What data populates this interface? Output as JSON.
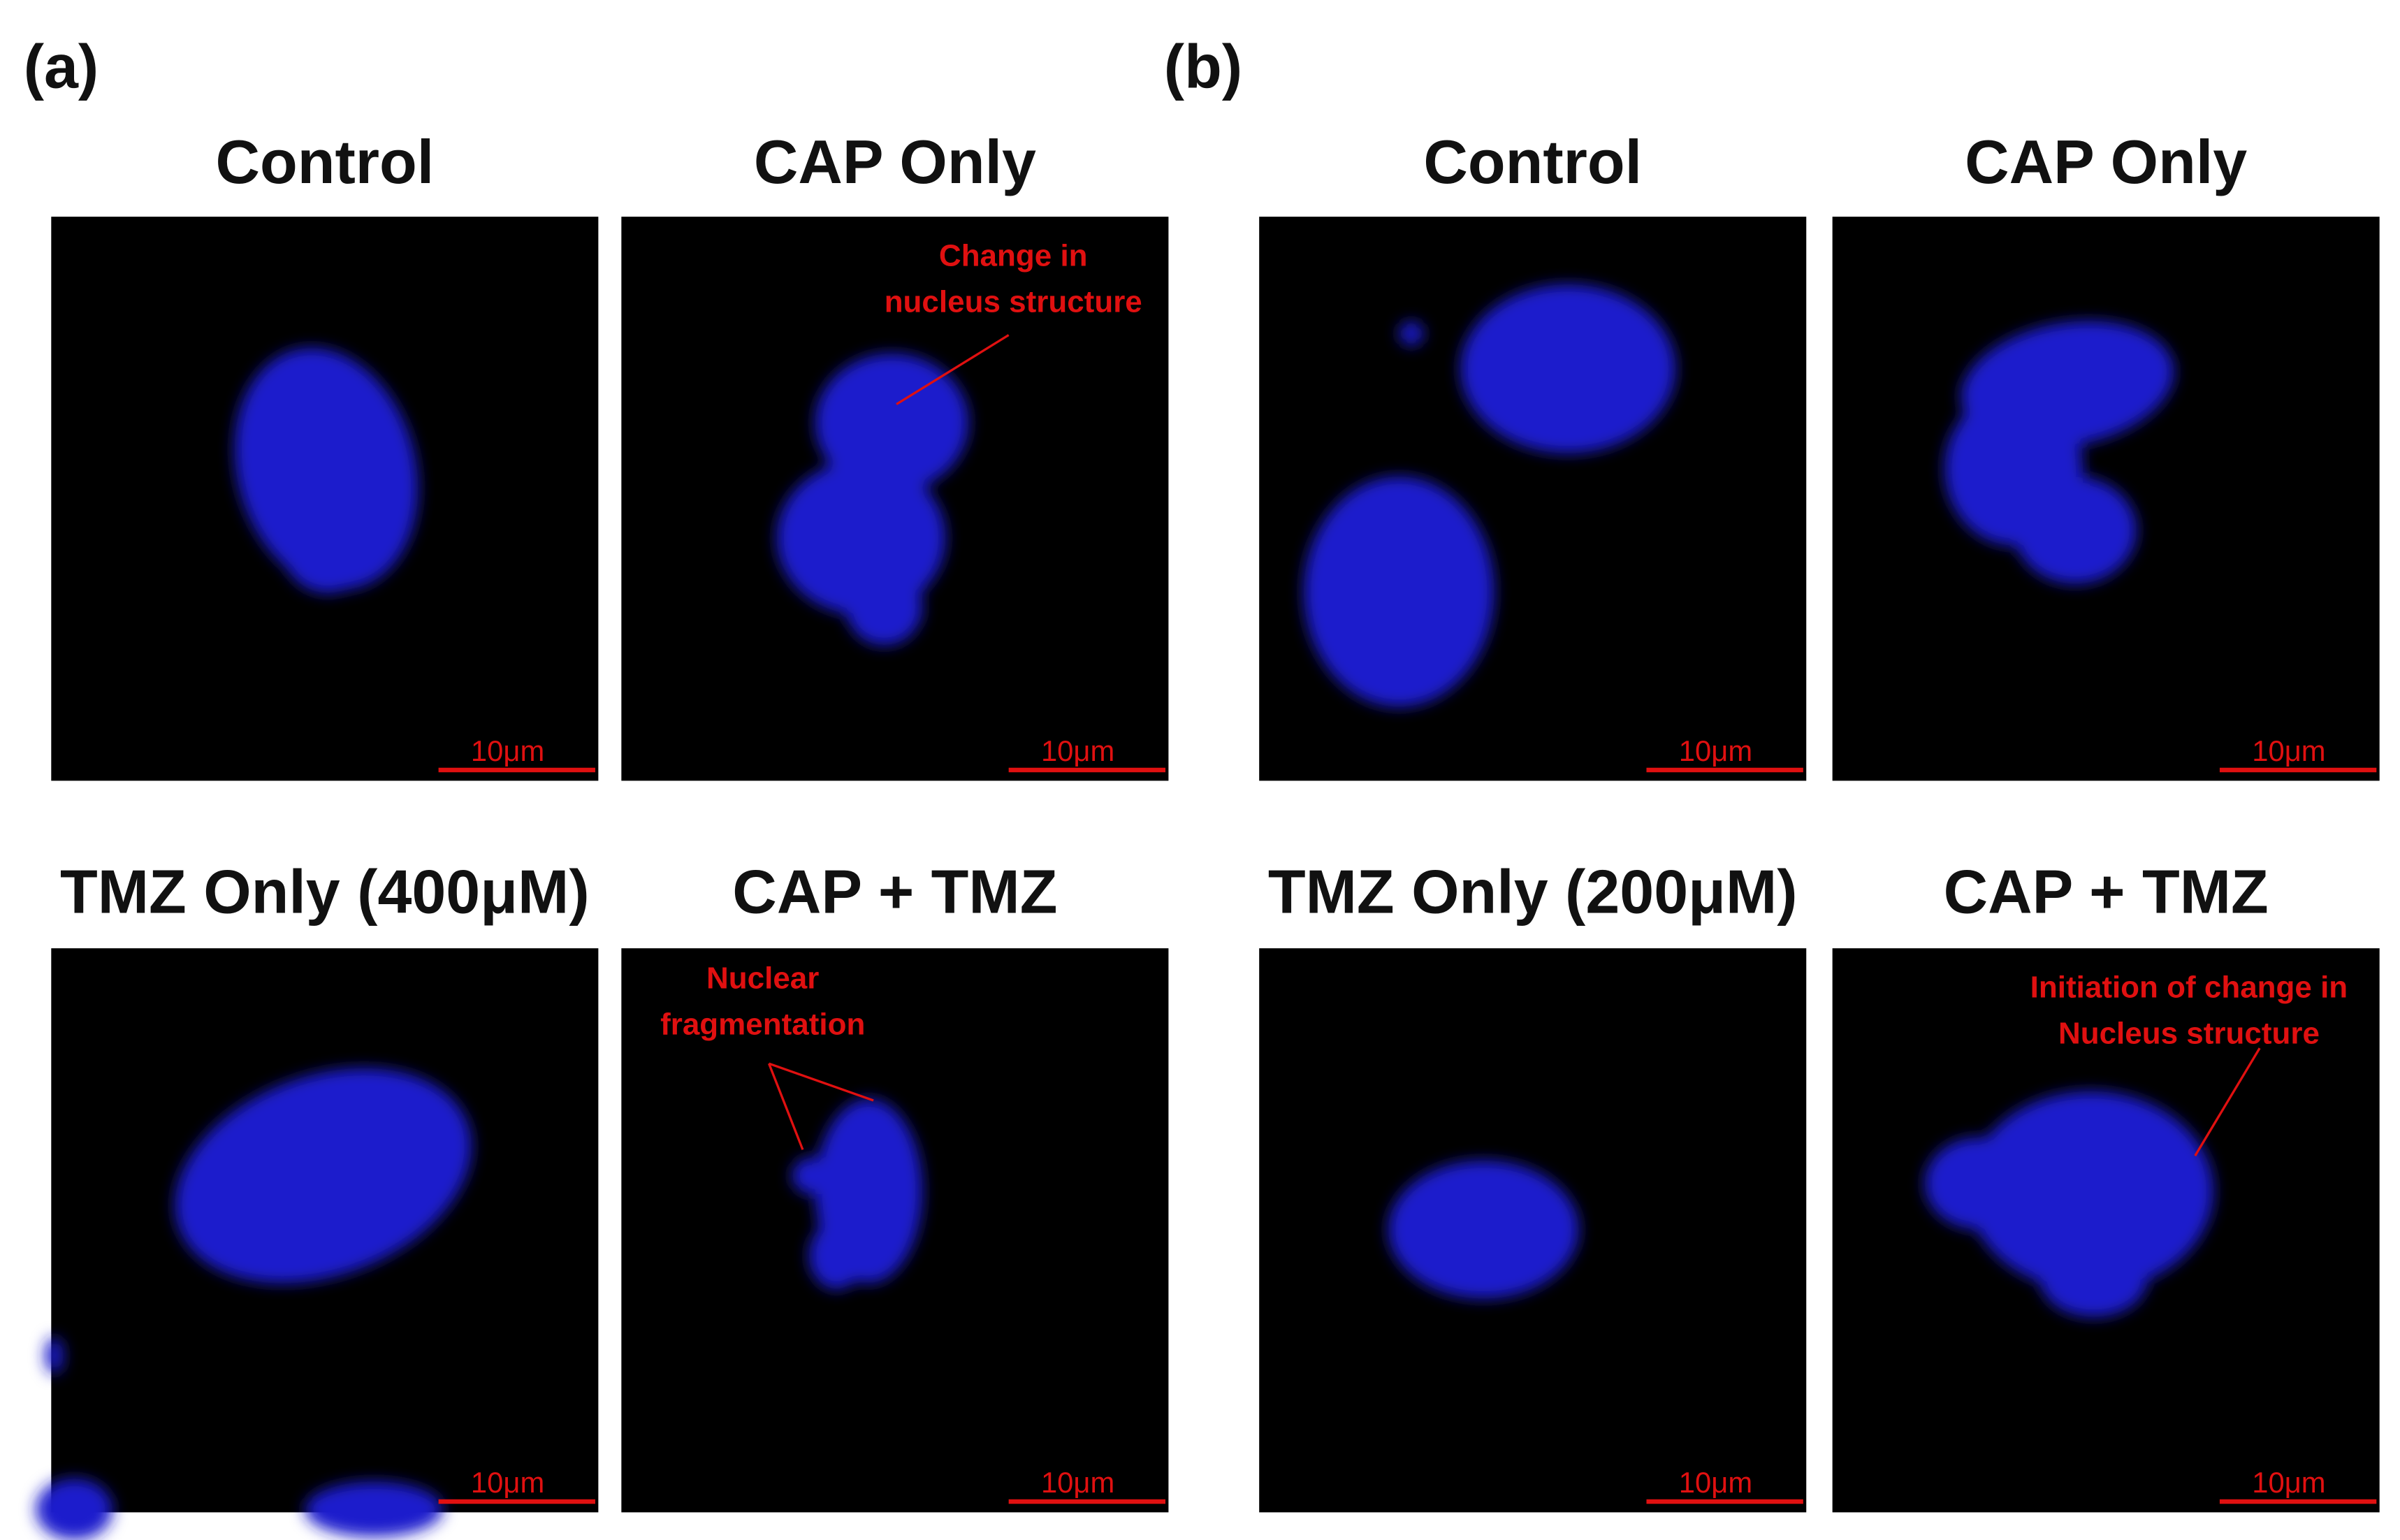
{
  "panels": [
    {
      "label": "(a)",
      "images": [
        {
          "title": "Control",
          "scale_bar": "10μm"
        },
        {
          "title": "CAP Only",
          "scale_bar": "10μm",
          "annotation": [
            "Change in",
            "nucleus structure"
          ]
        },
        {
          "title": "TMZ Only (400μM)",
          "scale_bar": "10μm"
        },
        {
          "title": "CAP + TMZ",
          "scale_bar": "10μm",
          "annotation": [
            "Nuclear",
            "fragmentation"
          ]
        }
      ]
    },
    {
      "label": "(b)",
      "images": [
        {
          "title": "Control",
          "scale_bar": "10μm"
        },
        {
          "title": "CAP Only",
          "scale_bar": "10μm"
        },
        {
          "title": "TMZ  Only (200μM)",
          "scale_bar": "10μm"
        },
        {
          "title": "CAP + TMZ",
          "scale_bar": "10μm",
          "annotation": [
            "Initiation of change in",
            "Nucleus structure"
          ]
        }
      ]
    }
  ]
}
